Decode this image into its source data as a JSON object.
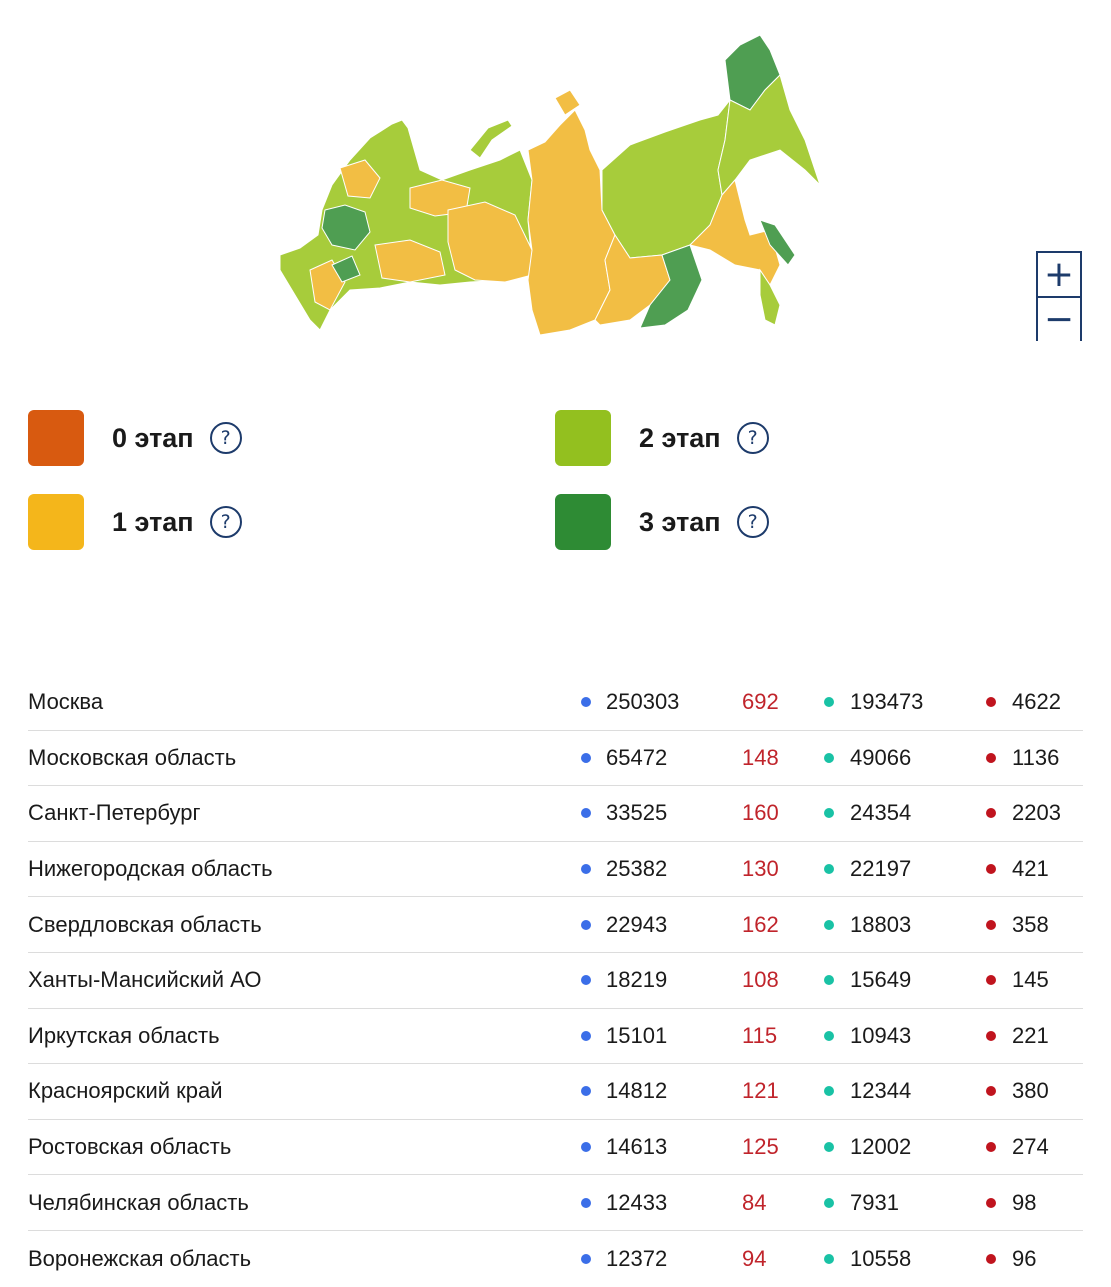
{
  "colors": {
    "stage0": "#d85a10",
    "stage1": "#f4b61b",
    "stage2": "#93c01f",
    "stage3": "#2e8b34",
    "map_yellow": "#f2be44",
    "map_lightgreen": "#a7cc3b",
    "map_darkgreen": "#4f9e52",
    "cases_dot": "#3b6ee8",
    "new_cases": "#c0242b",
    "recovered_dot": "#19c2a5",
    "deaths_dot": "#c0141e",
    "accent": "#1d3b6b"
  },
  "map": {
    "zoom_in": "+",
    "zoom_out": "−"
  },
  "legend": [
    {
      "label": "0 этап",
      "help": "?"
    },
    {
      "label": "1 этап",
      "help": "?"
    },
    {
      "label": "2 этап",
      "help": "?"
    },
    {
      "label": "3 этап",
      "help": "?"
    }
  ],
  "regions": [
    {
      "name": "Москва",
      "cases": "250303",
      "new": "692",
      "recovered": "193473",
      "deaths": "4622"
    },
    {
      "name": "Московская область",
      "cases": "65472",
      "new": "148",
      "recovered": "49066",
      "deaths": "1136"
    },
    {
      "name": "Санкт-Петербург",
      "cases": "33525",
      "new": "160",
      "recovered": "24354",
      "deaths": "2203"
    },
    {
      "name": "Нижегородская область",
      "cases": "25382",
      "new": "130",
      "recovered": "22197",
      "deaths": "421"
    },
    {
      "name": "Свердловская область",
      "cases": "22943",
      "new": "162",
      "recovered": "18803",
      "deaths": "358"
    },
    {
      "name": "Ханты-Мансийский АО",
      "cases": "18219",
      "new": "108",
      "recovered": "15649",
      "deaths": "145"
    },
    {
      "name": "Иркутская область",
      "cases": "15101",
      "new": "115",
      "recovered": "10943",
      "deaths": "221"
    },
    {
      "name": "Красноярский край",
      "cases": "14812",
      "new": "121",
      "recovered": "12344",
      "deaths": "380"
    },
    {
      "name": "Ростовская область",
      "cases": "14613",
      "new": "125",
      "recovered": "12002",
      "deaths": "274"
    },
    {
      "name": "Челябинская область",
      "cases": "12433",
      "new": "84",
      "recovered": "7931",
      "deaths": "98"
    },
    {
      "name": "Воронежская область",
      "cases": "12372",
      "new": "94",
      "recovered": "10558",
      "deaths": "96"
    }
  ]
}
